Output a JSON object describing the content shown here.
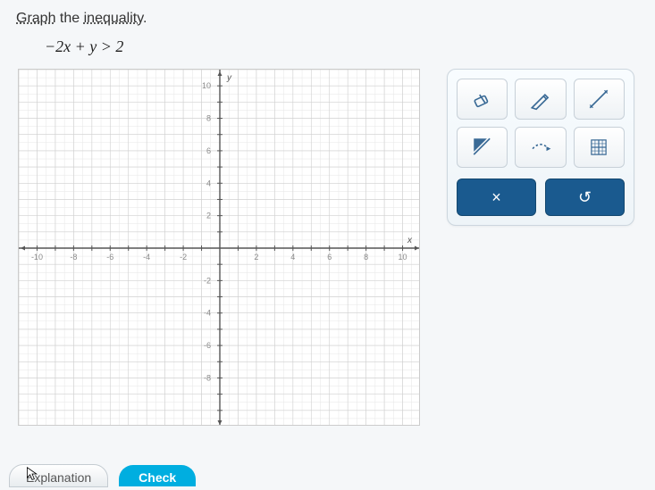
{
  "instruction": {
    "word1": "Graph",
    "plain": " the ",
    "word2": "inequality",
    "end": "."
  },
  "equation": "−2x + y > 2",
  "graph": {
    "type": "cartesian-grid",
    "xlim": [
      -11,
      11
    ],
    "ylim": [
      -11,
      11
    ],
    "xtick_step": 2,
    "ytick_step": 2,
    "x_labels": [
      -10,
      -8,
      -6,
      -4,
      -2,
      2,
      4,
      6,
      8,
      10
    ],
    "y_labels": [
      -8,
      -6,
      -4,
      -2,
      2,
      4,
      6,
      8,
      10
    ],
    "x_axis_label": "x",
    "y_axis_label": "y",
    "minor_grid_step": 0.5,
    "background_color": "#ffffff",
    "minor_grid_color": "#e6e6e6",
    "major_grid_color": "#cfcfcf",
    "axis_color": "#555555",
    "tick_label_color": "#8a8a8a",
    "axis_label_fontsize": 10,
    "tick_fontsize": 9,
    "arrowheads": true
  },
  "tools": {
    "row1": [
      {
        "id": "eraser",
        "icon": "eraser-icon"
      },
      {
        "id": "pencil",
        "icon": "pencil-icon"
      },
      {
        "id": "line",
        "icon": "line-tool-icon"
      }
    ],
    "row2": [
      {
        "id": "region",
        "icon": "region-shade-icon"
      },
      {
        "id": "dashed",
        "icon": "dashed-line-icon"
      },
      {
        "id": "grid",
        "icon": "grid-zoom-icon"
      }
    ],
    "tool_icon_color": "#3a6a96",
    "controls": {
      "clear_label": "×",
      "undo_label": "↺",
      "button_bg": "#1a5a8f",
      "button_fg": "#ffffff"
    }
  },
  "buttons": {
    "explanation": "Explanation",
    "check": "Check"
  },
  "colors": {
    "page_bg": "#f5f7f9",
    "panel_border": "#cccccc"
  }
}
